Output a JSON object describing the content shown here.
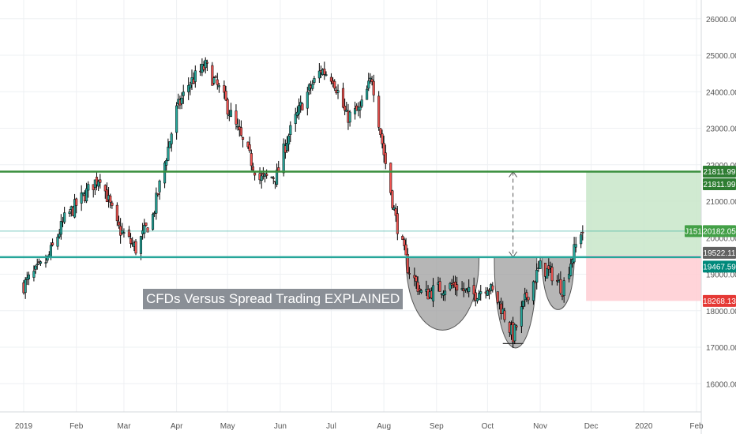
{
  "overlay": {
    "title": "CFDs Versus Spread Trading EXPLAINED"
  },
  "chart_data": {
    "type": "candlestick",
    "title": "",
    "xlabel": "",
    "ylabel": "",
    "ylim": [
      15000,
      26500
    ],
    "grid": true,
    "y_ticks": [
      "16000.00",
      "17000.00",
      "18000.00",
      "19000.00",
      "20000.00",
      "21000.00",
      "22000.00",
      "23000.00",
      "24000.00",
      "25000.00",
      "26000.00"
    ],
    "x_ticks": [
      "2019",
      "Feb",
      "Mar",
      "Apr",
      "May",
      "Jun",
      "Jul",
      "Aug",
      "Sep",
      "Oct",
      "Nov",
      "Dec",
      "2020",
      "Feb"
    ],
    "key_points": [
      {
        "date": "2019-01-01",
        "close": 18700
      },
      {
        "date": "2019-01-15",
        "close": 19400
      },
      {
        "date": "2019-01-25",
        "close": 20500
      },
      {
        "date": "2019-02-08",
        "close": 21300
      },
      {
        "date": "2019-02-15",
        "close": 21700
      },
      {
        "date": "2019-02-25",
        "close": 20300
      },
      {
        "date": "2019-03-08",
        "close": 19700
      },
      {
        "date": "2019-03-18",
        "close": 20600
      },
      {
        "date": "2019-04-01",
        "close": 23500
      },
      {
        "date": "2019-04-08",
        "close": 24200
      },
      {
        "date": "2019-04-18",
        "close": 24700
      },
      {
        "date": "2019-04-28",
        "close": 23900
      },
      {
        "date": "2019-05-10",
        "close": 22600
      },
      {
        "date": "2019-05-20",
        "close": 21600
      },
      {
        "date": "2019-05-30",
        "close": 21700
      },
      {
        "date": "2019-06-05",
        "close": 22700
      },
      {
        "date": "2019-06-15",
        "close": 23800
      },
      {
        "date": "2019-06-25",
        "close": 24600
      },
      {
        "date": "2019-07-02",
        "close": 24400
      },
      {
        "date": "2019-07-10",
        "close": 23300
      },
      {
        "date": "2019-07-18",
        "close": 23500
      },
      {
        "date": "2019-07-25",
        "close": 24400
      },
      {
        "date": "2019-08-01",
        "close": 22300
      },
      {
        "date": "2019-08-08",
        "close": 20500
      },
      {
        "date": "2019-08-15",
        "close": 19200
      },
      {
        "date": "2019-08-24",
        "close": 18400
      },
      {
        "date": "2019-09-01",
        "close": 18600
      },
      {
        "date": "2019-09-12",
        "close": 18700
      },
      {
        "date": "2019-09-22",
        "close": 18400
      },
      {
        "date": "2019-10-01",
        "close": 18700
      },
      {
        "date": "2019-10-08",
        "close": 18200
      },
      {
        "date": "2019-10-16",
        "close": 17300
      },
      {
        "date": "2019-10-24",
        "close": 18400
      },
      {
        "date": "2019-11-01",
        "close": 19200
      },
      {
        "date": "2019-11-08",
        "close": 19000
      },
      {
        "date": "2019-11-14",
        "close": 18600
      },
      {
        "date": "2019-11-20",
        "close": 19500
      },
      {
        "date": "2019-11-25",
        "close": 20182
      }
    ],
    "levels": [
      {
        "name": "resistance",
        "value": 21811.99,
        "color": "#388e3c",
        "label": "21811.99"
      },
      {
        "name": "neckline",
        "value": 19467.59,
        "color": "#26a69a",
        "label": "19467.59"
      },
      {
        "name": "current",
        "value": 20182.05,
        "color": "#26a69a",
        "label": "20182.05",
        "tag": "J151"
      }
    ],
    "position": {
      "entry": 19522.11,
      "target": 21811.99,
      "stop": 18268.13,
      "labels": [
        "21811.99",
        "19522.11",
        "18268.13"
      ],
      "colors": {
        "profit": "#c8e6c9",
        "loss": "#ffcdd2",
        "profit_label": "#2e7d32",
        "entry_label": "#616161",
        "stop_label": "#e53935"
      }
    },
    "colors": {
      "up": "#26a69a",
      "down": "#ef5350",
      "wick": "#000000",
      "shade": "#9e9e9e"
    }
  }
}
